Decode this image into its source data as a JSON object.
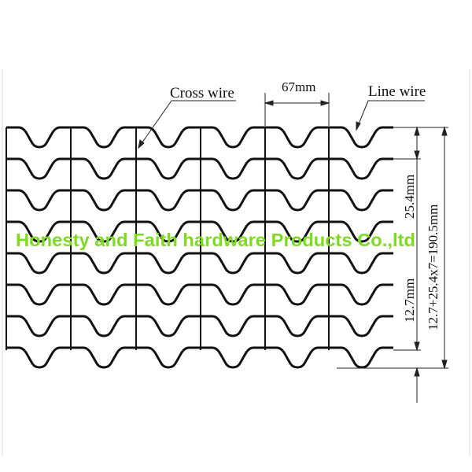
{
  "labels": {
    "cross_wire": "Cross wire",
    "line_wire": "Line wire",
    "pitch_horizontal": "67mm",
    "pitch_vertical": "25.4mm",
    "edge_offset": "12.7mm",
    "total_height": "12.7+25.4x7=190.5mm"
  },
  "watermark": "Honesty and Faith hardware Products Co.,ltd",
  "colors": {
    "wire": "#111111",
    "watermark": "#7ddc1f"
  }
}
